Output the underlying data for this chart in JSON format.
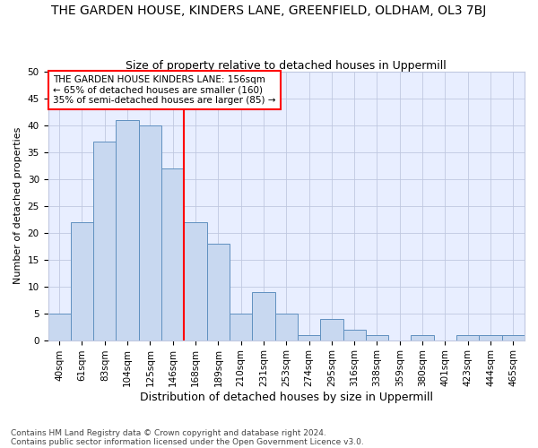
{
  "title": "THE GARDEN HOUSE, KINDERS LANE, GREENFIELD, OLDHAM, OL3 7BJ",
  "subtitle": "Size of property relative to detached houses in Uppermill",
  "xlabel": "Distribution of detached houses by size in Uppermill",
  "ylabel": "Number of detached properties",
  "categories": [
    "40sqm",
    "61sqm",
    "83sqm",
    "104sqm",
    "125sqm",
    "146sqm",
    "168sqm",
    "189sqm",
    "210sqm",
    "231sqm",
    "253sqm",
    "274sqm",
    "295sqm",
    "316sqm",
    "338sqm",
    "359sqm",
    "380sqm",
    "401sqm",
    "423sqm",
    "444sqm",
    "465sqm"
  ],
  "values": [
    5,
    22,
    37,
    41,
    40,
    32,
    22,
    18,
    5,
    9,
    5,
    1,
    4,
    2,
    1,
    0,
    1,
    0,
    1,
    1,
    1
  ],
  "bar_color": "#c8d8f0",
  "bar_edge_color": "#6090c0",
  "red_line_x": 5.5,
  "ylim": [
    0,
    50
  ],
  "yticks": [
    0,
    5,
    10,
    15,
    20,
    25,
    30,
    35,
    40,
    45,
    50
  ],
  "annotation_lines": [
    "THE GARDEN HOUSE KINDERS LANE: 156sqm",
    "← 65% of detached houses are smaller (160)",
    "35% of semi-detached houses are larger (85) →"
  ],
  "footnote1": "Contains HM Land Registry data © Crown copyright and database right 2024.",
  "footnote2": "Contains public sector information licensed under the Open Government Licence v3.0.",
  "bg_color": "#e8eeff",
  "grid_color": "#c0c8e0",
  "title_fontsize": 10,
  "subtitle_fontsize": 9,
  "xlabel_fontsize": 9,
  "ylabel_fontsize": 8,
  "tick_fontsize": 7.5,
  "annot_fontsize": 7.5,
  "footnote_fontsize": 6.5
}
